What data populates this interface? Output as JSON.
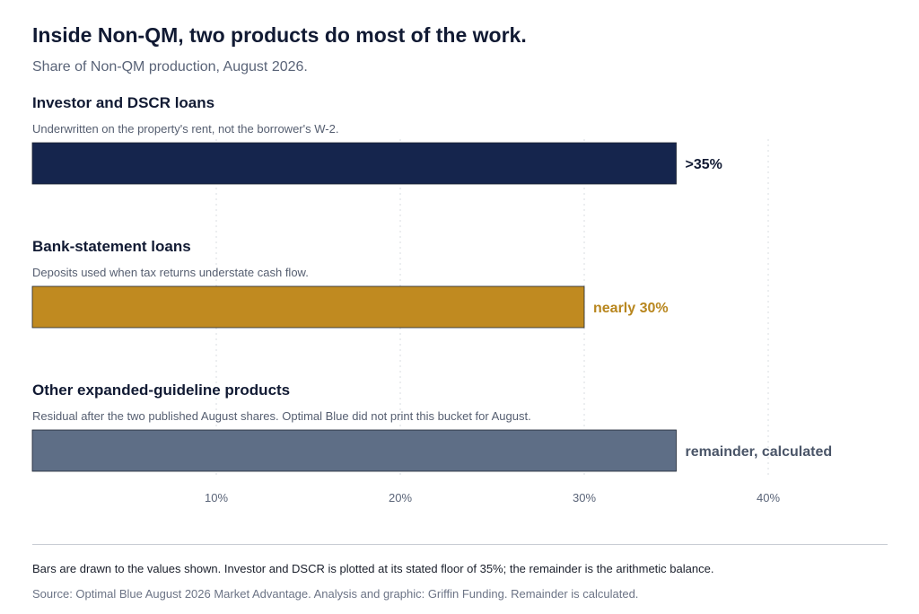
{
  "header": {
    "title": "Inside Non-QM, two products do most of the work.",
    "subtitle": "Share of Non-QM production, August 2026."
  },
  "chart_data": {
    "type": "bar",
    "orientation": "horizontal",
    "categories": [
      "Investor and DSCR loans",
      "Bank-statement loans",
      "Other expanded-guideline products"
    ],
    "descriptions": [
      "Underwritten on the property's rent, not the borrower's W-2.",
      "Deposits used when tax returns understate cash flow.",
      "Residual after the two published August shares. Optimal Blue did not print this bucket for August."
    ],
    "values": [
      35,
      30,
      35
    ],
    "value_labels": [
      ">35%",
      "nearly 30%",
      "remainder, calculated"
    ],
    "colors": [
      "#15254d",
      "#c08a20",
      "#5e6e86"
    ],
    "label_colors": [
      "#111a33",
      "#b8861e",
      "#4a5568"
    ],
    "xlim": [
      0,
      45
    ],
    "xticks": [
      10,
      20,
      30,
      40
    ],
    "xtick_labels": [
      "10%",
      "20%",
      "30%",
      "40%"
    ],
    "grid": true,
    "legend": "none"
  },
  "footer": {
    "note": "Bars are drawn to the values shown. Investor and DSCR is plotted at its stated floor of 35%; the remainder is the arithmetic balance.",
    "source": "Source: Optimal Blue August 2026 Market Advantage. Analysis and graphic: Griffin Funding. Remainder is calculated."
  }
}
